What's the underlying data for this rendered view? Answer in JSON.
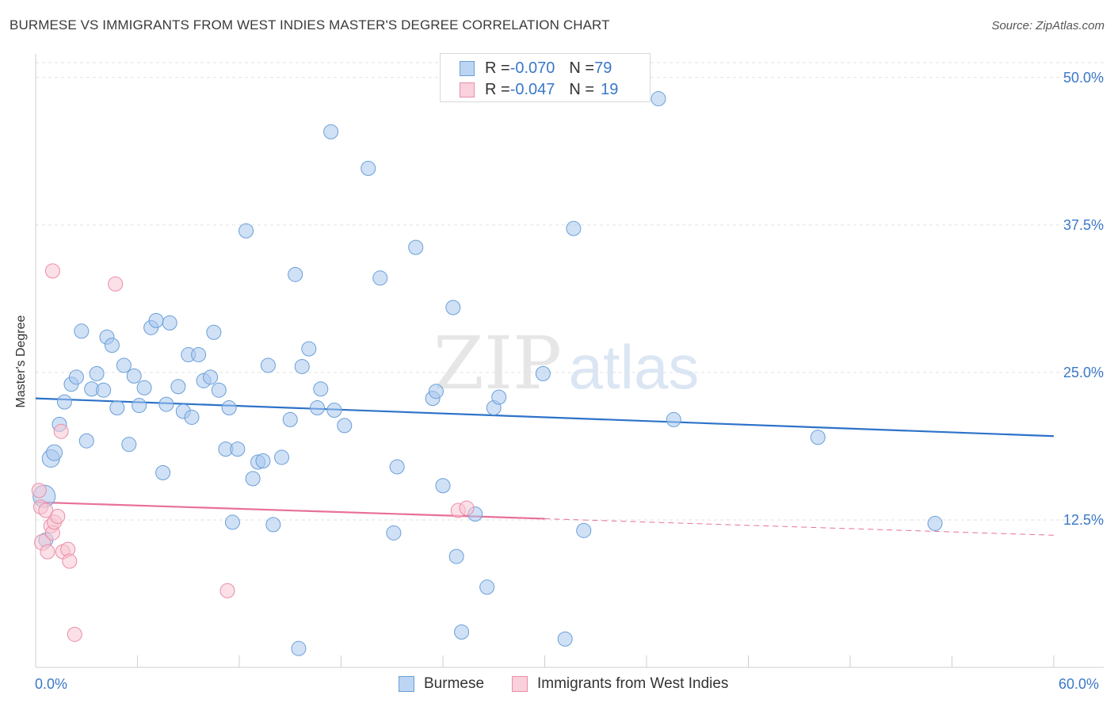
{
  "title": "BURMESE VS IMMIGRANTS FROM WEST INDIES MASTER'S DEGREE CORRELATION CHART",
  "source": "Source: ZipAtlas.com",
  "watermark": {
    "zip": "ZIP",
    "atlas": "atlas"
  },
  "legend": {
    "rows": [
      {
        "r_label": "R = ",
        "r_value": "-0.070",
        "n_label": "N = ",
        "n_value": "79",
        "color": "#a9c8ee",
        "border": "#6a9fd8"
      },
      {
        "r_label": "R = ",
        "r_value": "-0.047",
        "n_label": "N = ",
        "n_value": "19",
        "color": "#f8c6d4",
        "border": "#e98ea8"
      }
    ]
  },
  "bottom_legend": {
    "series1": "Burmese",
    "series2": "Immigrants from West Indies"
  },
  "chart_data": {
    "type": "scatter",
    "title": "BURMESE VS IMMIGRANTS FROM WEST INDIES MASTER'S DEGREE CORRELATION CHART",
    "xlabel": "",
    "ylabel": "Master's Degree",
    "xlim": [
      0,
      60
    ],
    "ylim": [
      0,
      52
    ],
    "x_tick_labels": [
      "0.0%",
      "60.0%"
    ],
    "y_ticks": [
      12.5,
      25.0,
      37.5,
      50.0
    ],
    "y_tick_labels": [
      "12.5%",
      "25.0%",
      "37.5%",
      "50.0%"
    ],
    "grid": true,
    "series": [
      {
        "name": "Burmese",
        "color": "#a9c8ee",
        "edge": "#6a9fd8",
        "trend": {
          "x": [
            0,
            60
          ],
          "y": [
            22.8,
            19.6
          ],
          "color": "#2d72c9"
        },
        "points": [
          [
            0.5,
            14.5,
            14
          ],
          [
            0.9,
            17.7,
            11
          ],
          [
            1.1,
            18.2,
            10
          ],
          [
            1.4,
            20.6,
            9
          ],
          [
            1.7,
            22.5,
            9
          ],
          [
            2.1,
            24.0,
            9
          ],
          [
            2.4,
            24.6,
            9
          ],
          [
            2.7,
            28.5,
            9
          ],
          [
            3.0,
            19.2,
            9
          ],
          [
            3.3,
            23.6,
            9
          ],
          [
            3.6,
            24.9,
            9
          ],
          [
            4.0,
            23.5,
            9
          ],
          [
            4.2,
            28.0,
            9
          ],
          [
            4.5,
            27.3,
            9
          ],
          [
            4.8,
            22.0,
            9
          ],
          [
            5.2,
            25.6,
            9
          ],
          [
            5.5,
            18.9,
            9
          ],
          [
            5.8,
            24.7,
            9
          ],
          [
            6.1,
            22.2,
            9
          ],
          [
            6.4,
            23.7,
            9
          ],
          [
            6.8,
            28.8,
            9
          ],
          [
            7.1,
            29.4,
            9
          ],
          [
            7.5,
            16.5,
            9
          ],
          [
            7.7,
            22.3,
            9
          ],
          [
            7.9,
            29.2,
            9
          ],
          [
            8.4,
            23.8,
            9
          ],
          [
            8.7,
            21.7,
            9
          ],
          [
            9.0,
            26.5,
            9
          ],
          [
            9.2,
            21.2,
            9
          ],
          [
            9.6,
            26.5,
            9
          ],
          [
            9.9,
            24.3,
            9
          ],
          [
            10.3,
            24.6,
            9
          ],
          [
            10.5,
            28.4,
            9
          ],
          [
            10.8,
            23.5,
            9
          ],
          [
            11.2,
            18.5,
            9
          ],
          [
            11.4,
            22.0,
            9
          ],
          [
            11.6,
            12.3,
            9
          ],
          [
            11.9,
            18.5,
            9
          ],
          [
            12.4,
            37.0,
            9
          ],
          [
            12.8,
            16.0,
            9
          ],
          [
            13.1,
            17.4,
            9
          ],
          [
            13.4,
            17.5,
            9
          ],
          [
            13.7,
            25.6,
            9
          ],
          [
            14.0,
            12.1,
            9
          ],
          [
            14.5,
            17.8,
            9
          ],
          [
            15.0,
            21.0,
            9
          ],
          [
            15.3,
            33.3,
            9
          ],
          [
            15.5,
            1.6,
            9
          ],
          [
            15.7,
            25.5,
            9
          ],
          [
            16.1,
            27.0,
            9
          ],
          [
            16.6,
            22.0,
            9
          ],
          [
            16.8,
            23.6,
            9
          ],
          [
            17.4,
            45.4,
            9
          ],
          [
            17.6,
            21.8,
            9
          ],
          [
            18.2,
            20.5,
            9
          ],
          [
            19.6,
            42.3,
            9
          ],
          [
            20.3,
            33.0,
            9
          ],
          [
            21.1,
            11.4,
            9
          ],
          [
            21.3,
            17.0,
            9
          ],
          [
            22.4,
            35.6,
            9
          ],
          [
            23.4,
            22.8,
            9
          ],
          [
            23.6,
            23.4,
            9
          ],
          [
            24.0,
            15.4,
            9
          ],
          [
            24.6,
            30.5,
            9
          ],
          [
            24.8,
            9.4,
            9
          ],
          [
            25.1,
            3.0,
            9
          ],
          [
            25.9,
            13.0,
            9
          ],
          [
            26.6,
            6.8,
            9
          ],
          [
            27.0,
            22.0,
            9
          ],
          [
            27.3,
            22.9,
            9
          ],
          [
            29.9,
            24.9,
            9
          ],
          [
            31.2,
            2.4,
            9
          ],
          [
            31.7,
            37.2,
            9
          ],
          [
            32.3,
            11.6,
            9
          ],
          [
            36.7,
            48.2,
            9
          ],
          [
            37.6,
            21.0,
            9
          ],
          [
            46.1,
            19.5,
            9
          ],
          [
            53.0,
            12.2,
            9
          ],
          [
            0.6,
            10.8,
            9
          ]
        ]
      },
      {
        "name": "Immigrants from West Indies",
        "color": "#f8c6d4",
        "edge": "#e98ea8",
        "trend": {
          "x": [
            0,
            30
          ],
          "y": [
            14.0,
            12.6
          ],
          "color": "#e8709a",
          "dashed_extension": {
            "x": [
              30,
              60
            ],
            "y": [
              12.6,
              11.2
            ]
          }
        },
        "points": [
          [
            0.2,
            15.0,
            9
          ],
          [
            0.3,
            13.6,
            9
          ],
          [
            0.4,
            10.6,
            10
          ],
          [
            0.6,
            13.3,
            9
          ],
          [
            0.7,
            9.8,
            9
          ],
          [
            0.9,
            12.0,
            9
          ],
          [
            1.0,
            11.4,
            9
          ],
          [
            1.1,
            12.3,
            9
          ],
          [
            1.3,
            12.8,
            9
          ],
          [
            1.0,
            33.6,
            9
          ],
          [
            1.5,
            20.0,
            9
          ],
          [
            1.6,
            9.8,
            9
          ],
          [
            1.9,
            10.0,
            9
          ],
          [
            2.0,
            9.0,
            9
          ],
          [
            2.3,
            2.8,
            9
          ],
          [
            4.7,
            32.5,
            9
          ],
          [
            11.3,
            6.5,
            9
          ],
          [
            24.9,
            13.3,
            9
          ],
          [
            25.4,
            13.5,
            9
          ]
        ]
      }
    ]
  }
}
